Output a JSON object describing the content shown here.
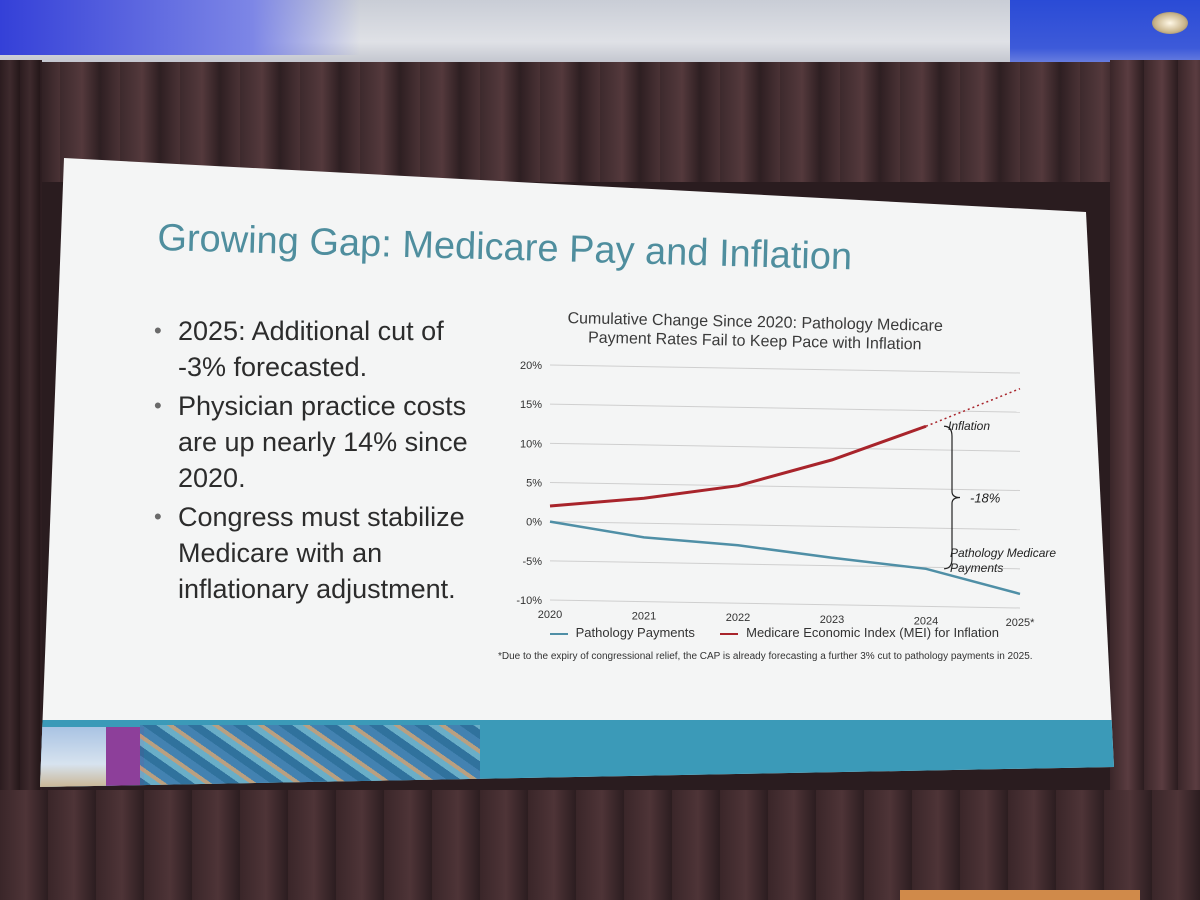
{
  "slide": {
    "title": "Growing Gap: Medicare Pay and Inflation",
    "bullets": [
      "2025: Additional cut of -3% forecasted.",
      "Physician practice costs are up nearly 14% since 2020.",
      "Congress must stabilize Medicare with an inflationary adjustment."
    ],
    "chart_title_line1": "Cumulative Change Since 2020: Pathology Medicare",
    "chart_title_line2": "Payment Rates Fail to Keep Pace with Inflation",
    "footnote": "*Due to the expiry of congressional relief, the CAP is already forecasting a further 3% cut to pathology payments in 2025.",
    "annotations": {
      "inflation": "Inflation",
      "gap": "-18%",
      "payments_line1": "Pathology Medicare",
      "payments_line2": "Payments"
    }
  },
  "chart_data": {
    "type": "line",
    "title": "Cumulative Change Since 2020: Pathology Medicare Payment Rates Fail to Keep Pace with Inflation",
    "categories": [
      "2020",
      "2021",
      "2022",
      "2023",
      "2024",
      "2025*"
    ],
    "y_tick_labels": [
      "20%",
      "15%",
      "10%",
      "5%",
      "0%",
      "-5%",
      "-10%"
    ],
    "y_ticks": [
      20,
      15,
      10,
      5,
      0,
      -5,
      -10
    ],
    "ylim": [
      -10,
      20
    ],
    "grid": true,
    "legend_position": "bottom",
    "series": [
      {
        "name": "Pathology Payments",
        "values": [
          0,
          -1.8,
          -2.6,
          -4.0,
          -5.2,
          -8.2
        ],
        "color": "#4f8fa6"
      },
      {
        "name": "Medicare Economic Index (MEI) for Inflation",
        "values": [
          2.0,
          3.2,
          5.0,
          8.5,
          13.0,
          null
        ],
        "color": "#a8242b"
      }
    ],
    "projection": {
      "from_x": "2024",
      "to_x": "2025*",
      "from_y": 13.0,
      "to_y": 18.0,
      "style": "dotted"
    }
  },
  "colors": {
    "title": "#4f8e9e",
    "payments": "#4f8fa6",
    "inflation": "#a8242b",
    "footer": "#3b9ab8"
  }
}
